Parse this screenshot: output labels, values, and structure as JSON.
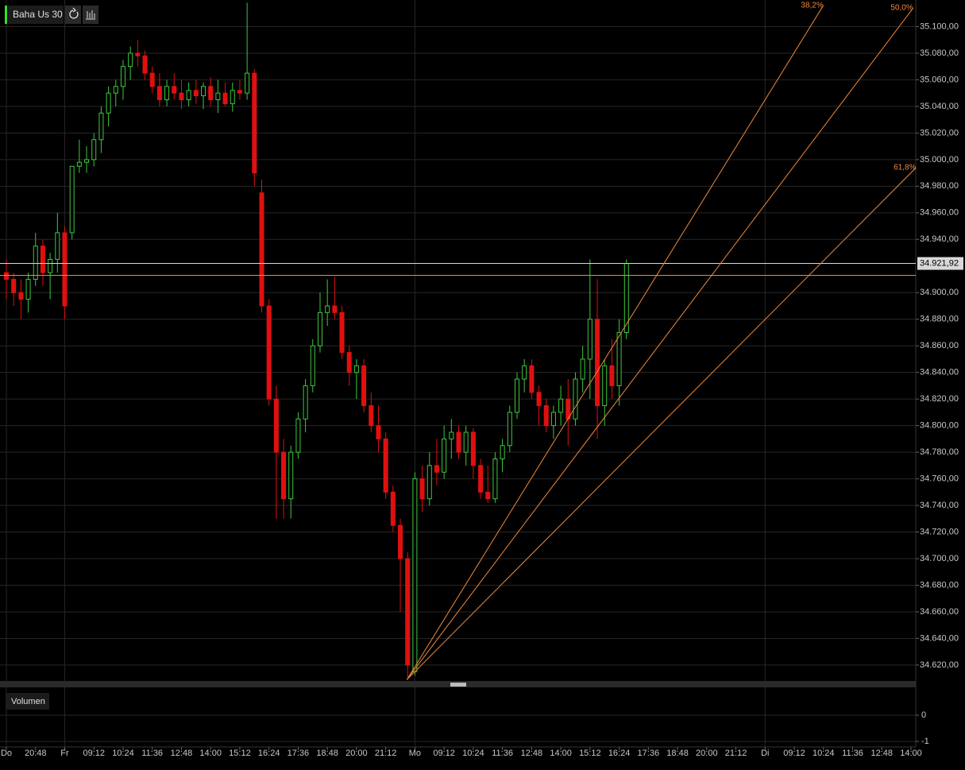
{
  "chart_data": {
    "type": "candlestick",
    "title": "Baha Us 30",
    "xlim": [
      0,
      124
    ],
    "xticks": [
      {
        "value": 0,
        "label": "Do"
      },
      {
        "value": 4,
        "label": "20:48"
      },
      {
        "value": 8,
        "label": "Fr"
      },
      {
        "value": 12,
        "label": "09:12"
      },
      {
        "value": 16,
        "label": "10:24"
      },
      {
        "value": 20,
        "label": "11:36"
      },
      {
        "value": 24,
        "label": "12:48"
      },
      {
        "value": 28,
        "label": "14:00"
      },
      {
        "value": 32,
        "label": "15:12"
      },
      {
        "value": 36,
        "label": "16:24"
      },
      {
        "value": 40,
        "label": "17:36"
      },
      {
        "value": 44,
        "label": "18:48"
      },
      {
        "value": 48,
        "label": "20:00"
      },
      {
        "value": 52,
        "label": "21:12"
      },
      {
        "value": 56,
        "label": "Mo"
      },
      {
        "value": 60,
        "label": "09:12"
      },
      {
        "value": 64,
        "label": "10:24"
      },
      {
        "value": 68,
        "label": "11:36"
      },
      {
        "value": 72,
        "label": "12:48"
      },
      {
        "value": 76,
        "label": "14:00"
      },
      {
        "value": 80,
        "label": "15:12"
      },
      {
        "value": 84,
        "label": "16:24"
      },
      {
        "value": 88,
        "label": "17:36"
      },
      {
        "value": 92,
        "label": "18:48"
      },
      {
        "value": 96,
        "label": "20:00"
      },
      {
        "value": 100,
        "label": "21:12"
      },
      {
        "value": 104,
        "label": "Di"
      },
      {
        "value": 108,
        "label": "09:12"
      },
      {
        "value": 112,
        "label": "10:24"
      },
      {
        "value": 116,
        "label": "11:36"
      },
      {
        "value": 120,
        "label": "12:48"
      },
      {
        "value": 124,
        "label": "14:00"
      }
    ],
    "ylim": [
      34608,
      35120
    ],
    "yticks": [
      {
        "value": 34620,
        "label": "34.620,00"
      },
      {
        "value": 34640,
        "label": "34.640,00"
      },
      {
        "value": 34660,
        "label": "34.660,00"
      },
      {
        "value": 34680,
        "label": "34.680,00"
      },
      {
        "value": 34700,
        "label": "34.700,00"
      },
      {
        "value": 34720,
        "label": "34.720,00"
      },
      {
        "value": 34740,
        "label": "34.740,00"
      },
      {
        "value": 34760,
        "label": "34.760,00"
      },
      {
        "value": 34780,
        "label": "34.780,00"
      },
      {
        "value": 34800,
        "label": "34.800,00"
      },
      {
        "value": 34820,
        "label": "34.820,00"
      },
      {
        "value": 34840,
        "label": "34.840,00"
      },
      {
        "value": 34860,
        "label": "34.860,00"
      },
      {
        "value": 34880,
        "label": "34.880,00"
      },
      {
        "value": 34900,
        "label": "34.900,00"
      },
      {
        "value": 34940,
        "label": "34.940,00"
      },
      {
        "value": 34960,
        "label": "34.960,00"
      },
      {
        "value": 34980,
        "label": "34.980,00"
      },
      {
        "value": 35000,
        "label": "35.000,00"
      },
      {
        "value": 35020,
        "label": "35.020,00"
      },
      {
        "value": 35040,
        "label": "35.040,00"
      },
      {
        "value": 35060,
        "label": "35.060,00"
      },
      {
        "value": 35080,
        "label": "35.080,00"
      },
      {
        "value": 35100,
        "label": "35.100,00"
      }
    ],
    "grid": true,
    "up_color": "#3ec83e",
    "down_color": "#e01010",
    "open": [
      34915,
      34910,
      34900,
      34895,
      34910,
      34935,
      34915,
      34925,
      34945,
      34945,
      34995,
      34998,
      35000,
      35015,
      35035,
      35050,
      35055,
      35070,
      35080,
      35078,
      35065,
      35055,
      35045,
      35055,
      35050,
      35045,
      35052,
      35048,
      35055,
      35045,
      35050,
      35042,
      35052,
      35050,
      35065,
      34975,
      34890,
      34820,
      34780,
      34745,
      34780,
      34805,
      34830,
      34860,
      34885,
      34890,
      34885,
      34855,
      34840,
      34845,
      34815,
      34800,
      34790,
      34750,
      34725,
      34700,
      34615,
      34760,
      34745,
      34770,
      34765,
      34790,
      34795,
      34780,
      34795,
      34770,
      34750,
      34745,
      34775,
      34785,
      34810,
      34835,
      34845,
      34825,
      34815,
      34800,
      34810,
      34820,
      34805,
      34835,
      34850,
      34880,
      34815,
      34845,
      34830,
      34870
    ],
    "high": [
      34925,
      34915,
      34910,
      34915,
      34945,
      34940,
      34930,
      34960,
      34950,
      34995,
      35015,
      35010,
      35020,
      35040,
      35055,
      35060,
      35075,
      35085,
      35090,
      35082,
      35070,
      35065,
      35060,
      35065,
      35060,
      35058,
      35060,
      35058,
      35062,
      35060,
      35058,
      35058,
      35060,
      35118,
      35068,
      34985,
      34895,
      34830,
      34790,
      34785,
      34810,
      34835,
      34865,
      34900,
      34910,
      34912,
      34890,
      34860,
      34850,
      34850,
      34825,
      34815,
      34795,
      34755,
      34730,
      34705,
      34765,
      34770,
      34780,
      34790,
      34800,
      34805,
      34800,
      34800,
      34798,
      34775,
      34770,
      34780,
      34790,
      34815,
      34840,
      34850,
      34850,
      34830,
      34820,
      34815,
      34830,
      34835,
      34840,
      34860,
      34925,
      34910,
      34850,
      34865,
      34880,
      34925
    ],
    "low": [
      34895,
      34890,
      34880,
      34885,
      34905,
      34905,
      34895,
      34915,
      34880,
      34940,
      34990,
      34990,
      34995,
      35005,
      35025,
      35040,
      35045,
      35060,
      35070,
      35060,
      35050,
      35040,
      35040,
      35045,
      35038,
      35040,
      35042,
      35038,
      35040,
      35035,
      35040,
      35036,
      35045,
      35045,
      34980,
      34885,
      34815,
      34730,
      34730,
      34730,
      34775,
      34795,
      34825,
      34855,
      34875,
      34880,
      34850,
      34830,
      34820,
      34810,
      34795,
      34780,
      34745,
      34720,
      34660,
      34611,
      34612,
      34735,
      34740,
      34755,
      34760,
      34775,
      34775,
      34770,
      34760,
      34745,
      34742,
      34742,
      34765,
      34780,
      34805,
      34825,
      34820,
      34800,
      34795,
      34790,
      34800,
      34785,
      34800,
      34825,
      34820,
      34790,
      34800,
      34820,
      34815,
      34865
    ],
    "close": [
      34910,
      34900,
      34895,
      34910,
      34935,
      34915,
      34925,
      34945,
      34890,
      34995,
      34998,
      35000,
      35015,
      35035,
      35050,
      35055,
      35070,
      35080,
      35078,
      35065,
      35055,
      35045,
      35055,
      35050,
      35045,
      35052,
      35048,
      35055,
      35045,
      35050,
      35042,
      35052,
      35050,
      35065,
      34990,
      34890,
      34820,
      34780,
      34745,
      34780,
      34805,
      34830,
      34860,
      34885,
      34890,
      34885,
      34855,
      34840,
      34845,
      34815,
      34800,
      34790,
      34750,
      34725,
      34700,
      34620,
      34760,
      34745,
      34770,
      34765,
      34790,
      34795,
      34780,
      34795,
      34770,
      34750,
      34745,
      34775,
      34785,
      34810,
      34835,
      34845,
      34825,
      34815,
      34800,
      34810,
      34820,
      34805,
      34835,
      34850,
      34880,
      34815,
      34845,
      34830,
      34870,
      34921.92
    ],
    "last_price": {
      "value": 34921.92,
      "label": "34.921,92"
    },
    "alert_line": 34913,
    "fan": {
      "origin": [
        54.9,
        34609
      ],
      "lines": [
        {
          "label": "38,2%",
          "end": [
            112,
            35116
          ]
        },
        {
          "label": "50,0%",
          "end": [
            124.3,
            35114
          ]
        },
        {
          "label": "61,8%",
          "end": [
            124.7,
            34994
          ]
        }
      ]
    },
    "volume": {
      "label": "Volumen",
      "ylim": [
        -1.21,
        1
      ],
      "yticks": [
        0,
        -1
      ]
    }
  }
}
